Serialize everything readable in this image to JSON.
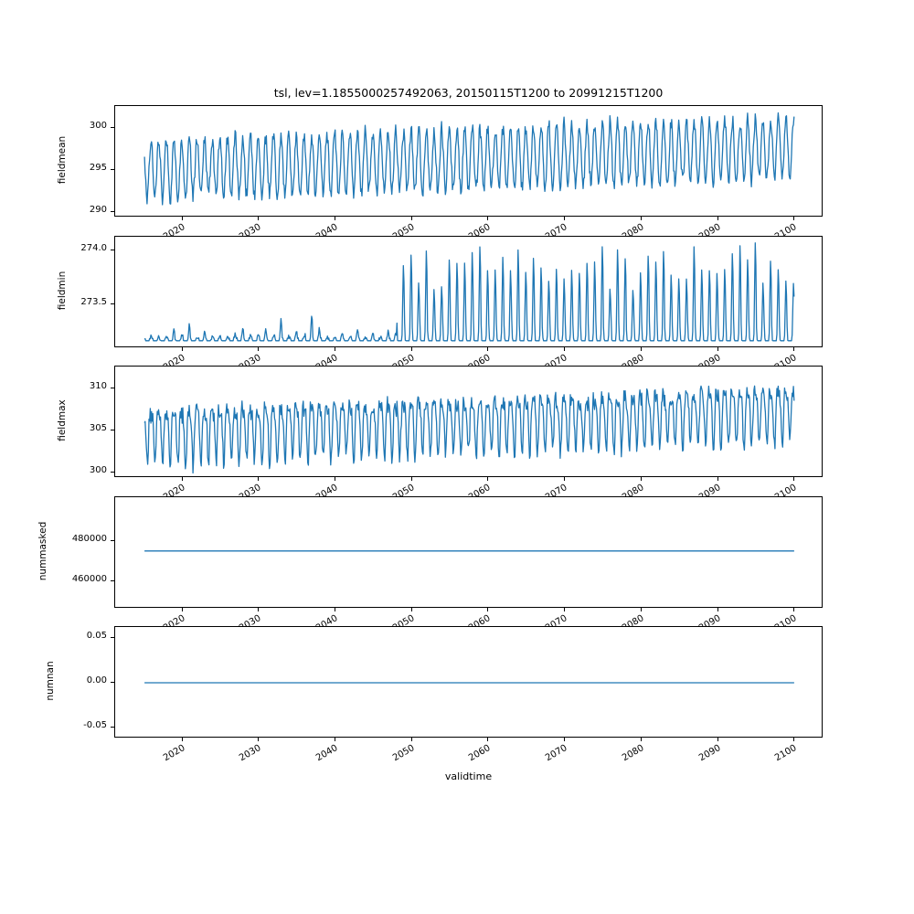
{
  "title": "tsl, lev=1.1855000257492063, 20150115T1200 to 20991215T1200",
  "xlabel": "validtime",
  "line_color": "#1f77b4",
  "x": {
    "start": 2015.04,
    "end": 2099.96,
    "sampling": "monthly",
    "lim": [
      2011.2,
      2103.8
    ],
    "ticks": [
      {
        "value": 2020,
        "label": "2020"
      },
      {
        "value": 2030,
        "label": "2030"
      },
      {
        "value": 2040,
        "label": "2040"
      },
      {
        "value": 2050,
        "label": "2050"
      },
      {
        "value": 2060,
        "label": "2060"
      },
      {
        "value": 2070,
        "label": "2070"
      },
      {
        "value": 2080,
        "label": "2080"
      },
      {
        "value": 2090,
        "label": "2090"
      },
      {
        "value": 2100,
        "label": "2100"
      }
    ]
  },
  "chart_data": [
    {
      "name": "fieldmean",
      "type": "line",
      "ylabel": "fieldmean",
      "ylim": [
        289.3,
        302.6
      ],
      "yticks": [
        {
          "value": 300,
          "label": "300"
        },
        {
          "value": 295,
          "label": "295"
        },
        {
          "value": 290,
          "label": "290"
        }
      ],
      "series_spec": {
        "kind": "seasonal",
        "seed": 11,
        "base0": 295.0,
        "base1": 297.6,
        "amp": 3.6,
        "noise": 0.8
      },
      "summary": "Monthly annual cycle oscillating ~291-299 in 2015, mean rising steadily so the band is ~294-302 by 2100; deepest trough ~290 near 2040."
    },
    {
      "name": "fieldmin",
      "type": "line",
      "ylabel": "fieldmin",
      "ylim": [
        273.09,
        274.13
      ],
      "yticks": [
        {
          "value": 274.0,
          "label": "274.0"
        },
        {
          "value": 273.5,
          "label": "273.5"
        }
      ],
      "series_spec": {
        "kind": "clipped_peaks",
        "seed": 22,
        "base": 273.16,
        "t_switch": 2048,
        "small_max": 0.22,
        "big_min": 0.4,
        "big_max": 0.85,
        "growth": 0.08
      },
      "summary": "Flat baseline at ~273.16 (freezing point) with sporadic small seasonal spikes below ~273.4 until ~2048; afterwards regular seasonal peaks reaching ~273.6-274.1 while troughs stay clipped at the baseline."
    },
    {
      "name": "fieldmax",
      "type": "line",
      "ylabel": "fieldmax",
      "ylim": [
        299.3,
        312.6
      ],
      "yticks": [
        {
          "value": 310,
          "label": "310"
        },
        {
          "value": 305,
          "label": "305"
        },
        {
          "value": 300,
          "label": "300"
        }
      ],
      "series_spec": {
        "kind": "seasonal2",
        "seed": 33,
        "base0": 304.8,
        "base1": 307.4,
        "amp": 3.0,
        "harm": 1.1,
        "noise": 0.9
      },
      "summary": "Noisy annual cycle oscillating ~300-310 early in the record, rising to ~303-312.5 by 2100."
    },
    {
      "name": "nummasked",
      "type": "line",
      "ylabel": "nummasked",
      "ylim": [
        446000,
        502000
      ],
      "yticks": [
        {
          "value": 480000,
          "label": "480000"
        },
        {
          "value": 460000,
          "label": "460000"
        }
      ],
      "series_spec": {
        "kind": "constant",
        "value": 475000
      },
      "summary": "Constant at ~475000 masked points over the entire 2015-2100 period."
    },
    {
      "name": "numnan",
      "type": "line",
      "ylabel": "numnan",
      "ylim": [
        -0.062,
        0.062
      ],
      "yticks": [
        {
          "value": 0.05,
          "label": "0.05"
        },
        {
          "value": 0.0,
          "label": "0.00"
        },
        {
          "value": -0.05,
          "label": "-0.05"
        }
      ],
      "series_spec": {
        "kind": "constant",
        "value": 0
      },
      "summary": "Constant 0 NaN count over the entire 2015-2100 period."
    }
  ]
}
